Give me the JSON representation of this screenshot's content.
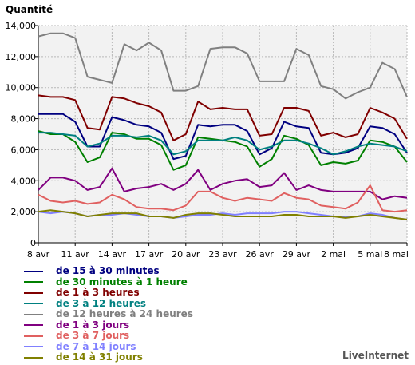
{
  "credit": "LiveInternet",
  "chart_data": {
    "type": "line",
    "ylabel": "Quantité",
    "ylim": [
      0,
      14000
    ],
    "yticks": [
      0,
      2000,
      4000,
      6000,
      8000,
      10000,
      12000,
      14000
    ],
    "ytick_labels": [
      "0",
      "2,000",
      "4,000",
      "6,000",
      "8,000",
      "10,000",
      "12,000",
      "14,000"
    ],
    "x_tick_labels": [
      "8 avr",
      "11 avr",
      "14 avr",
      "17 avr",
      "20 avr",
      "23 avr",
      "26 avr",
      "29 avr",
      "2 mai",
      "5 mai",
      "8 mai"
    ],
    "x_tick_every": 3,
    "grid": true,
    "legend_position": "bottom",
    "x": [
      "8 avr",
      "9 avr",
      "10 avr",
      "11 avr",
      "12 avr",
      "13 avr",
      "14 avr",
      "15 avr",
      "16 avr",
      "17 avr",
      "18 avr",
      "19 avr",
      "20 avr",
      "21 avr",
      "22 avr",
      "23 avr",
      "24 avr",
      "25 avr",
      "26 avr",
      "27 avr",
      "28 avr",
      "29 avr",
      "30 avr",
      "1 mai",
      "2 mai",
      "3 mai",
      "4 mai",
      "5 mai",
      "6 mai",
      "7 mai",
      "8 mai"
    ],
    "series": [
      {
        "name": "de 15 à 30 minutes",
        "color": "#000080",
        "values": [
          8300,
          8300,
          8300,
          7800,
          6200,
          6200,
          8100,
          7900,
          7600,
          7500,
          7100,
          5400,
          5600,
          7600,
          7500,
          7600,
          7600,
          7200,
          5700,
          6100,
          7800,
          7500,
          7400,
          5800,
          5700,
          5800,
          6100,
          7500,
          7400,
          7000,
          5800
        ]
      },
      {
        "name": "de 30 minutes à 1 heure",
        "color": "#008000",
        "values": [
          7200,
          7000,
          7000,
          6500,
          5200,
          5500,
          7100,
          7000,
          6700,
          6700,
          6300,
          4700,
          5000,
          6800,
          6700,
          6600,
          6500,
          6200,
          4900,
          5400,
          6900,
          6700,
          6300,
          5000,
          5200,
          5100,
          5300,
          6600,
          6500,
          6200,
          5200
        ]
      },
      {
        "name": "de 1 à 3 heures",
        "color": "#800000",
        "values": [
          9500,
          9400,
          9400,
          9200,
          7400,
          7300,
          9400,
          9300,
          9000,
          8800,
          8400,
          6600,
          7000,
          9100,
          8600,
          8700,
          8600,
          8600,
          6900,
          7000,
          8700,
          8700,
          8500,
          6900,
          7100,
          6800,
          7000,
          8700,
          8400,
          8000,
          6700
        ]
      },
      {
        "name": "de 3 à 12 heures",
        "color": "#008080",
        "values": [
          7100,
          7100,
          7000,
          6900,
          6200,
          6400,
          6900,
          6900,
          6800,
          6900,
          6600,
          5700,
          5900,
          6600,
          6600,
          6600,
          6800,
          6600,
          6000,
          6200,
          6600,
          6600,
          6400,
          6100,
          5700,
          5900,
          6200,
          6400,
          6300,
          6200,
          5900
        ]
      },
      {
        "name": "de 12 heures à 24 heures",
        "color": "#808080",
        "values": [
          13300,
          13500,
          13500,
          13200,
          10700,
          10500,
          10300,
          12800,
          12400,
          12900,
          12400,
          9800,
          9800,
          10100,
          12500,
          12600,
          12600,
          12200,
          10400,
          10400,
          10400,
          12500,
          12100,
          10100,
          9900,
          9300,
          9700,
          10000,
          11600,
          11200,
          9400
        ]
      },
      {
        "name": "de 1 à 3 jours",
        "color": "#800080",
        "values": [
          3400,
          4200,
          4200,
          4000,
          3400,
          3600,
          4800,
          3300,
          3500,
          3600,
          3800,
          3400,
          3800,
          4700,
          3400,
          3800,
          4000,
          4100,
          3600,
          3700,
          4500,
          3400,
          3700,
          3400,
          3300,
          3300,
          3300,
          3300,
          2800,
          3000,
          2900
        ]
      },
      {
        "name": "de 3 à 7 jours",
        "color": "#e06060",
        "values": [
          3100,
          2700,
          2600,
          2700,
          2500,
          2600,
          3100,
          2800,
          2300,
          2200,
          2200,
          2100,
          2400,
          3300,
          3300,
          2900,
          2700,
          2900,
          2800,
          2700,
          3200,
          2900,
          2800,
          2400,
          2300,
          2200,
          2600,
          3700,
          2100,
          2000,
          2100
        ]
      },
      {
        "name": "de 7 à 14 jours",
        "color": "#8080ff",
        "values": [
          2000,
          1900,
          2000,
          1900,
          1700,
          1800,
          1800,
          1900,
          1800,
          1700,
          1700,
          1600,
          1700,
          1800,
          1800,
          1900,
          1800,
          1900,
          1900,
          1900,
          2000,
          2000,
          1900,
          1800,
          1700,
          1700,
          1700,
          1900,
          1800,
          1600,
          1500
        ]
      },
      {
        "name": "de 14 à 31 jours",
        "color": "#808000",
        "values": [
          2000,
          2100,
          2000,
          1900,
          1700,
          1800,
          1900,
          1900,
          1900,
          1700,
          1700,
          1600,
          1800,
          1900,
          1900,
          1800,
          1700,
          1700,
          1700,
          1700,
          1800,
          1800,
          1700,
          1700,
          1700,
          1600,
          1700,
          1800,
          1700,
          1600,
          1500
        ]
      }
    ]
  }
}
